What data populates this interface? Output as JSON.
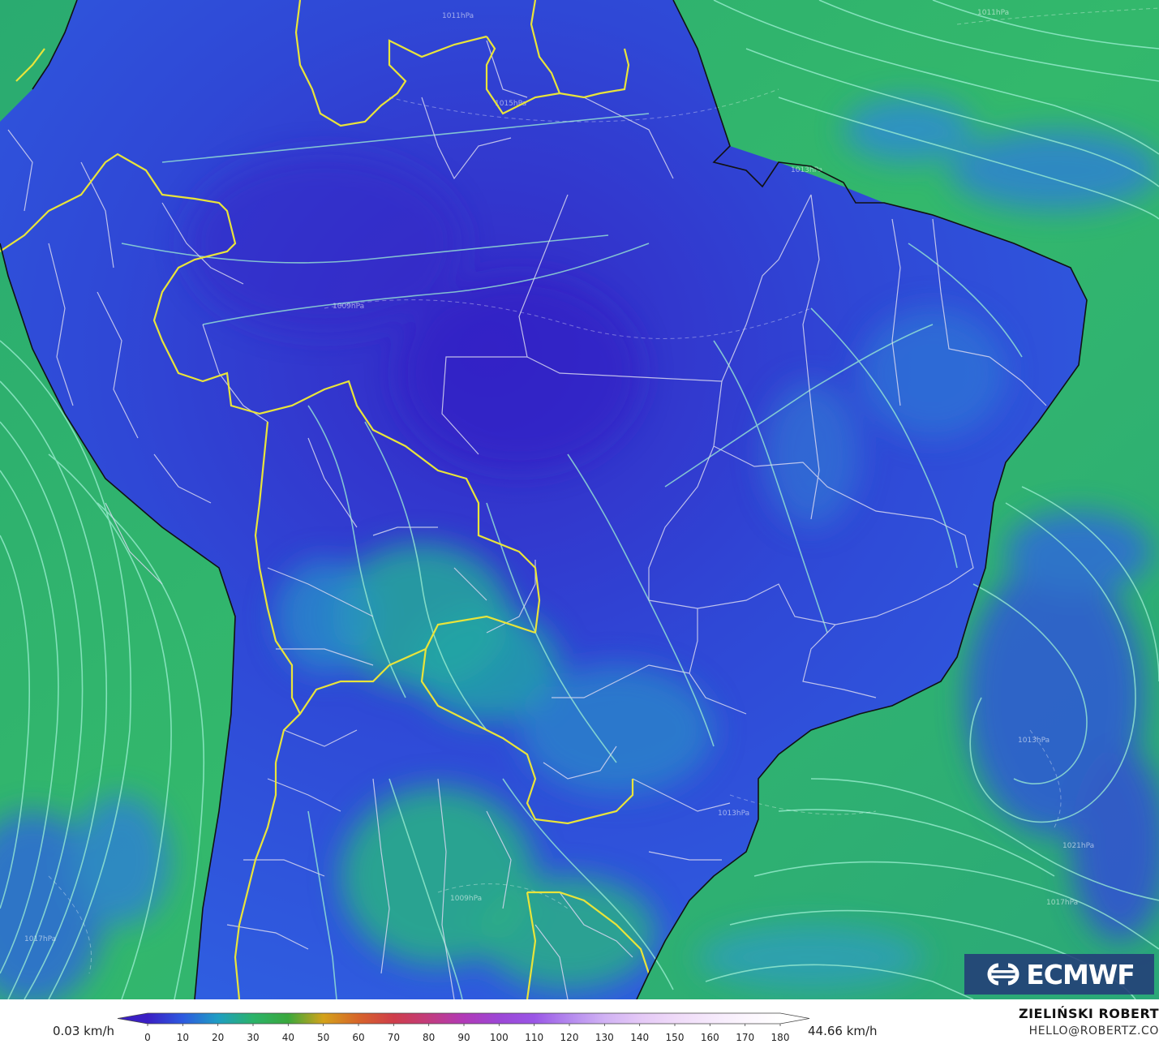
{
  "map": {
    "region": "South America",
    "field": "wind speed with streamlines",
    "pressure_labels": [
      "1011hPa",
      "1013hPa",
      "1009hPa",
      "1011hPa",
      "1013hPa",
      "1009hPa",
      "1017hPa",
      "1013hPa",
      "1017hPa",
      "1021hPa",
      "1015hPa"
    ],
    "colors": {
      "ocean": "#2bb36a",
      "ocean_light": "#3ec47a",
      "land_low": "#2f4fd8",
      "land_lowest": "#3624c8",
      "teal": "#23a0a0",
      "streamline": "#9ff0d4",
      "border_country": "#e9e43a",
      "border_state": "#d8d8f0",
      "coast": "#111111"
    }
  },
  "logo": {
    "text": "ECMWF",
    "icon": "ecmwf-logo-icon"
  },
  "legend": {
    "min_label": "0.03 km/h",
    "max_label": "44.66 km/h",
    "ticks": [
      "0",
      "10",
      "20",
      "30",
      "40",
      "50",
      "60",
      "70",
      "80",
      "90",
      "100",
      "110",
      "120",
      "130",
      "140",
      "150",
      "160",
      "170",
      "180"
    ],
    "stops": [
      {
        "value": 0,
        "color": "#3a1fc4"
      },
      {
        "value": 10,
        "color": "#2d5ae0"
      },
      {
        "value": 20,
        "color": "#1f9ec3"
      },
      {
        "value": 30,
        "color": "#2bb36a"
      },
      {
        "value": 40,
        "color": "#3aa83c"
      },
      {
        "value": 50,
        "color": "#d4a21a"
      },
      {
        "value": 60,
        "color": "#d7642a"
      },
      {
        "value": 70,
        "color": "#cf3d4a"
      },
      {
        "value": 80,
        "color": "#c23c7e"
      },
      {
        "value": 90,
        "color": "#b13ab8"
      },
      {
        "value": 100,
        "color": "#9c47d6"
      },
      {
        "value": 110,
        "color": "#9a56e6"
      },
      {
        "value": 120,
        "color": "#b489ee"
      },
      {
        "value": 130,
        "color": "#d1b2f4"
      },
      {
        "value": 140,
        "color": "#e4c8f6"
      },
      {
        "value": 150,
        "color": "#efdaf8"
      },
      {
        "value": 160,
        "color": "#f5e8fb"
      },
      {
        "value": 170,
        "color": "#fbf5fd"
      },
      {
        "value": 180,
        "color": "#ffffff"
      }
    ]
  },
  "credits": {
    "author": "ZIELIŃSKI ROBERT",
    "email": "HELLO@ROBERTZ.CO"
  }
}
